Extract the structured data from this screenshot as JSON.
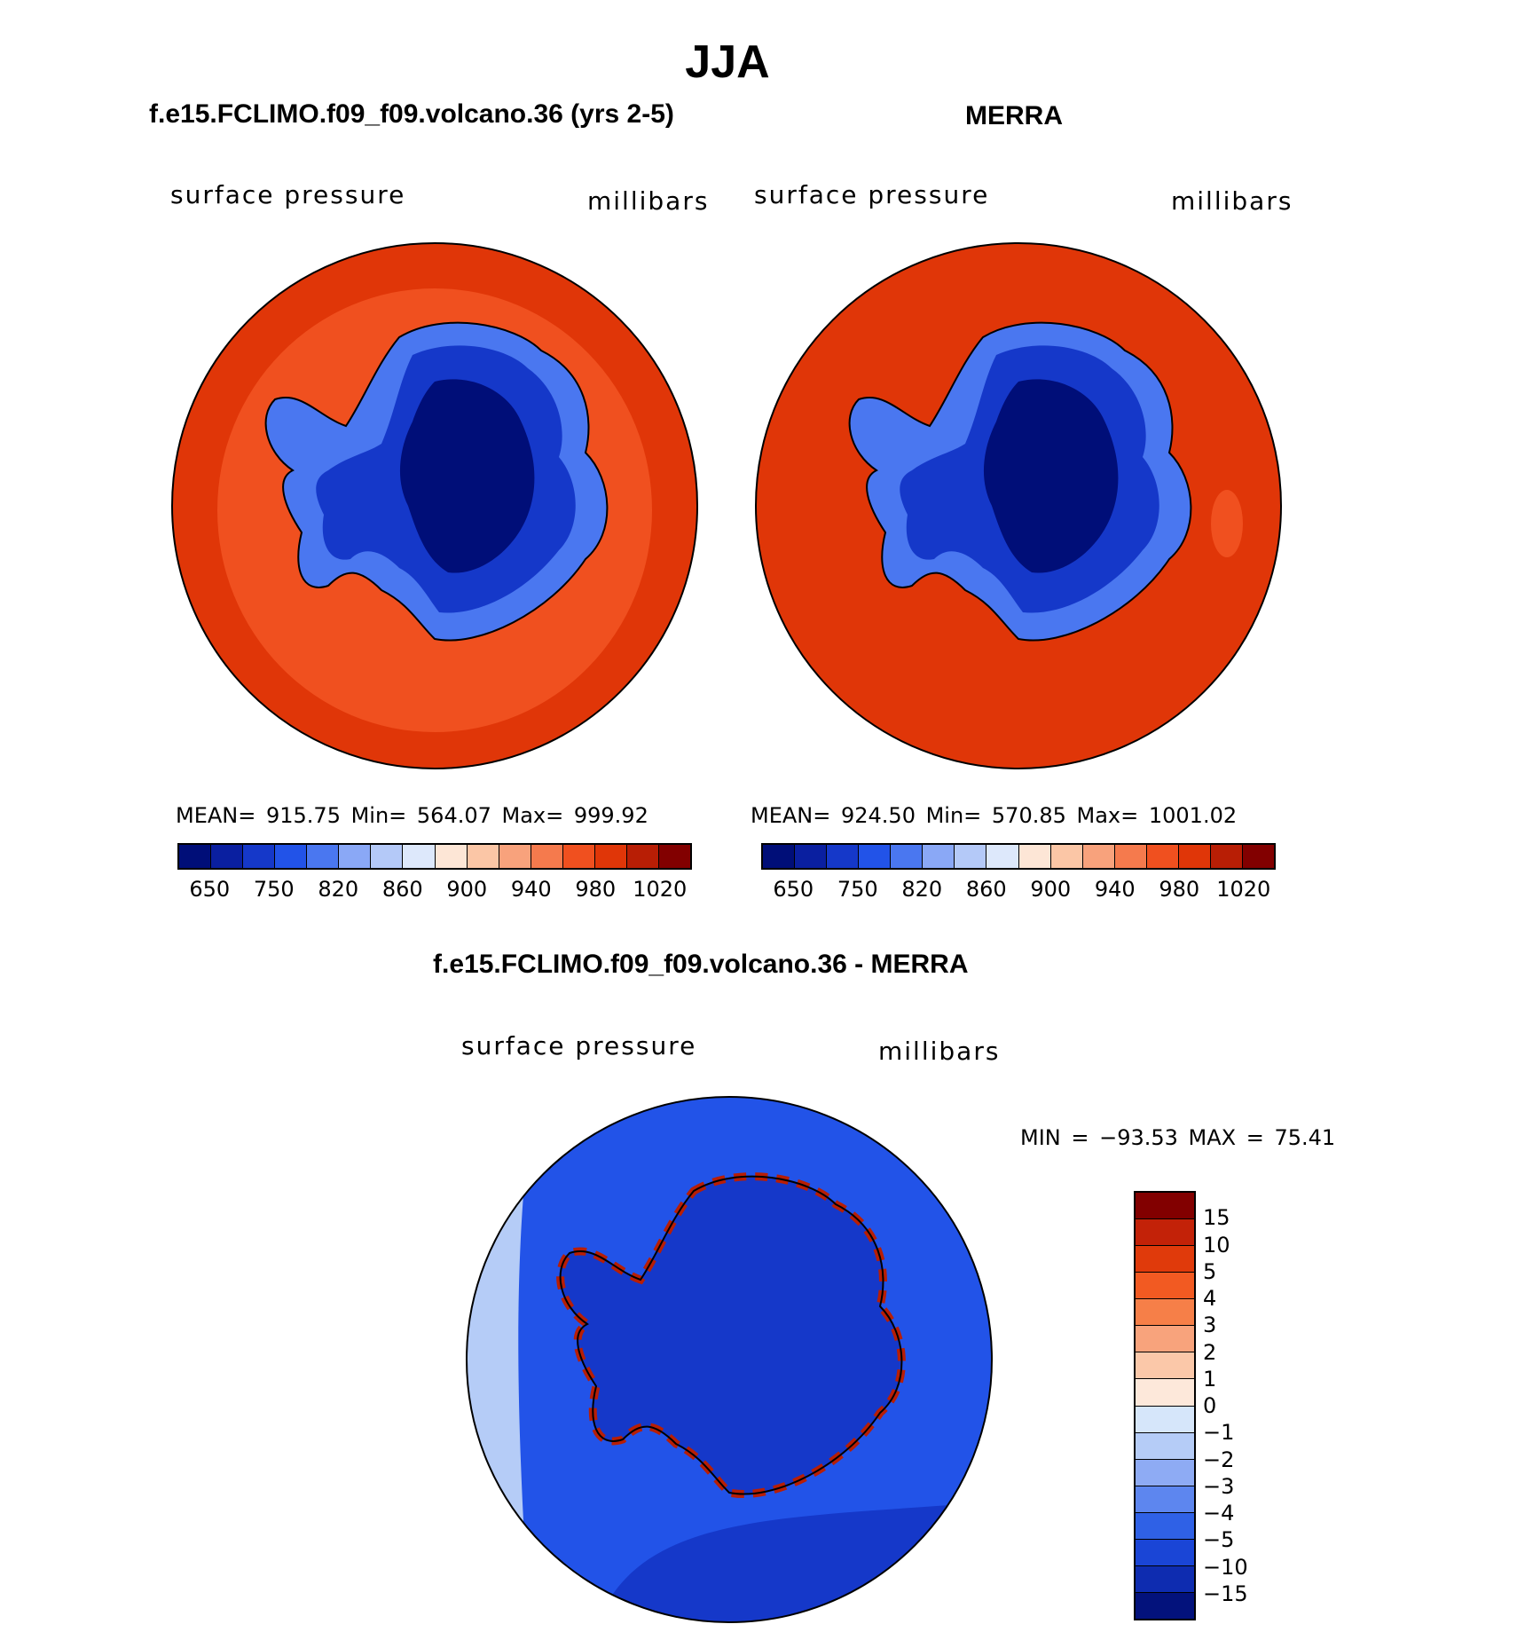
{
  "title": "JJA",
  "panels": {
    "left": {
      "title": "f.e15.FCLIMO.f09_f09.volcano.36 (yrs 2-5)",
      "variable": "surface pressure",
      "units": "millibars",
      "stats": "MEAN= 915.75   Min= 564.07   Max= 999.92"
    },
    "right": {
      "title": "MERRA",
      "variable": "surface pressure",
      "units": "millibars",
      "stats": "MEAN= 924.50   Min= 570.85   Max= 1001.02"
    },
    "diff": {
      "title": "f.e15.FCLIMO.f09_f09.volcano.36 - MERRA",
      "variable": "surface pressure",
      "units": "millibars",
      "stats": "MIN  =  −93.53  MAX  =    75.41"
    }
  },
  "abs_colorbar": {
    "colors": [
      "#000e78",
      "#0a1fa0",
      "#1538c9",
      "#2253e8",
      "#4a77f0",
      "#8aa8f6",
      "#b4c9f8",
      "#dde8fb",
      "#fde6d6",
      "#fbc6a6",
      "#f8a27c",
      "#f57a4d",
      "#f0501f",
      "#e03608",
      "#b81e05",
      "#820000"
    ],
    "tick_labels": [
      "650",
      "750",
      "820",
      "860",
      "900",
      "940",
      "980",
      "1020"
    ]
  },
  "diff_colorbar": {
    "colors": [
      "#820000",
      "#c32208",
      "#e03a0b",
      "#f25a22",
      "#f67f48",
      "#f8a37c",
      "#fbc8a9",
      "#fde8da",
      "#d6e6fa",
      "#b5ccf7",
      "#8eabf4",
      "#5d86ef",
      "#2f61e6",
      "#1a45d6",
      "#0e2cb0",
      "#03127c"
    ],
    "tick_labels": [
      "15",
      "10",
      "5",
      "4",
      "3",
      "2",
      "1",
      "0",
      "−1",
      "−2",
      "−3",
      "−4",
      "−5",
      "−10",
      "−15"
    ]
  },
  "map_colors": {
    "ocean_deep": "#e03608",
    "ocean_mid": "#f0501f",
    "interior_low": "#000e78",
    "interior_mid": "#1538c9",
    "interior_edge": "#4a77f0",
    "diff_ocean": "#2253e8",
    "diff_ocean_dark": "#1538c9",
    "diff_light": "#b5ccf7",
    "diff_pos": "#b81e05"
  }
}
